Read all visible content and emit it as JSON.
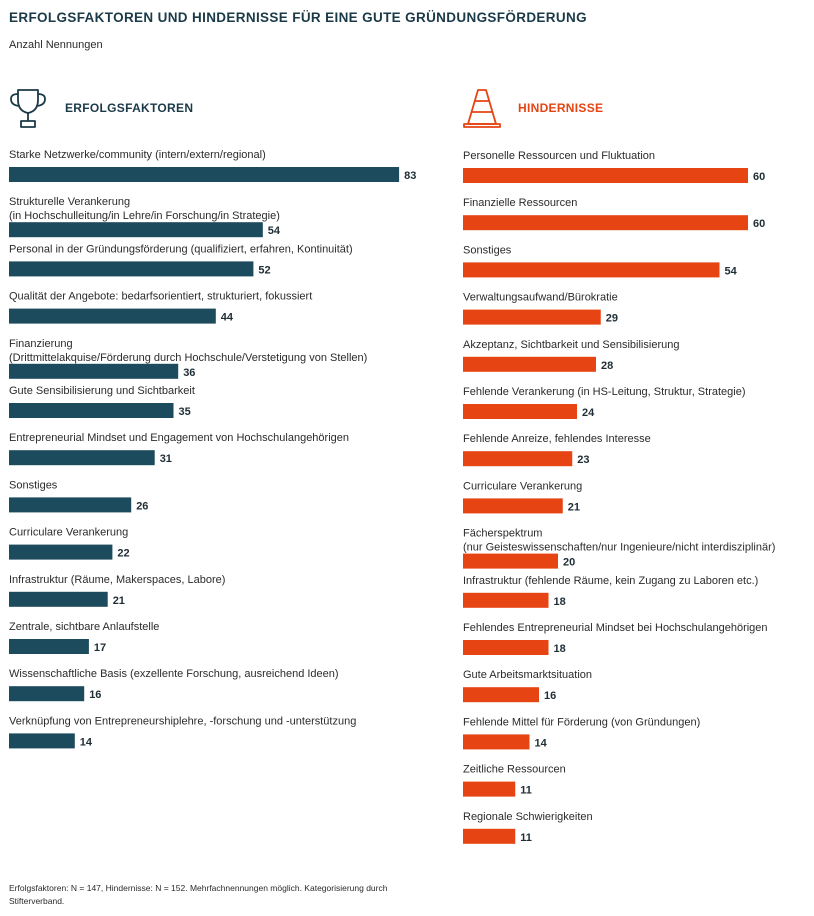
{
  "title": "ERFOLGSFAKTOREN UND HINDERNISSE FÜR EINE GUTE GRÜNDUNGSFÖRDERUNG",
  "subtitle": "Anzahl Nennungen",
  "footnote": "Erfolgsfaktoren: N = 147, Hindernisse: N = 152. Mehrfachnennungen möglich. Kategorisierung durch Stifterverband.",
  "icons": {
    "left": "trophy-icon",
    "right": "traffic-cone-icon"
  },
  "chart_data": [
    {
      "type": "bar",
      "orientation": "horizontal",
      "title": "ERFOLGSFAKTOREN",
      "color": "#1b4b5c",
      "categories": [
        [
          "Starke Netzwerke/community (intern/extern/regional)"
        ],
        [
          "Strukturelle Verankerung",
          "(in Hochschulleitung/in Lehre/in Forschung/in Strategie)"
        ],
        [
          "Personal in der Gründungsförderung (qualifiziert, erfahren, Kontinuität)"
        ],
        [
          "Qualität der Angebote: bedarfsorientiert, strukturiert, fokussiert"
        ],
        [
          "Finanzierung",
          "(Drittmittelakquise/Förderung durch Hochschule/Verstetigung von Stellen)"
        ],
        [
          "Gute Sensibilisierung und Sichtbarkeit"
        ],
        [
          "Entrepreneurial Mindset und Engagement von Hochschulangehörigen"
        ],
        [
          "Sonstiges"
        ],
        [
          "Curriculare Verankerung"
        ],
        [
          "Infrastruktur (Räume, Makerspaces, Labore)"
        ],
        [
          "Zentrale, sichtbare Anlaufstelle"
        ],
        [
          "Wissenschaftliche Basis (exzellente Forschung, ausreichend Ideen)"
        ],
        [
          "Verknüpfung von Entrepreneurshiplehre, -forschung und -unterstützung"
        ]
      ],
      "values": [
        83,
        54,
        52,
        44,
        36,
        35,
        31,
        26,
        22,
        21,
        17,
        16,
        14
      ]
    },
    {
      "type": "bar",
      "orientation": "horizontal",
      "title": "HINDERNISSE",
      "color": "#e64413",
      "categories": [
        [
          "Personelle Ressourcen und Fluktuation"
        ],
        [
          "Finanzielle Ressourcen"
        ],
        [
          "Sonstiges"
        ],
        [
          "Verwaltungsaufwand/Bürokratie"
        ],
        [
          "Akzeptanz, Sichtbarkeit und Sensibilisierung"
        ],
        [
          "Fehlende Verankerung (in HS-Leitung, Struktur, Strategie)"
        ],
        [
          "Fehlende Anreize, fehlendes Interesse"
        ],
        [
          "Curriculare Verankerung"
        ],
        [
          "Fächerspektrum",
          "(nur Geisteswissenschaften/nur Ingenieure/nicht interdisziplinär)"
        ],
        [
          "Infrastruktur (fehlende Räume, kein Zugang zu Laboren etc.)"
        ],
        [
          "Fehlendes Entrepreneurial Mindset bei Hochschulangehörigen"
        ],
        [
          "Gute Arbeitsmarktsituation"
        ],
        [
          "Fehlende Mittel für Förderung (von Gründungen)"
        ],
        [
          "Zeitliche Ressourcen"
        ],
        [
          "Regionale Schwierigkeiten"
        ]
      ],
      "values": [
        60,
        60,
        54,
        29,
        28,
        24,
        23,
        21,
        20,
        18,
        18,
        16,
        14,
        11,
        11
      ]
    }
  ]
}
